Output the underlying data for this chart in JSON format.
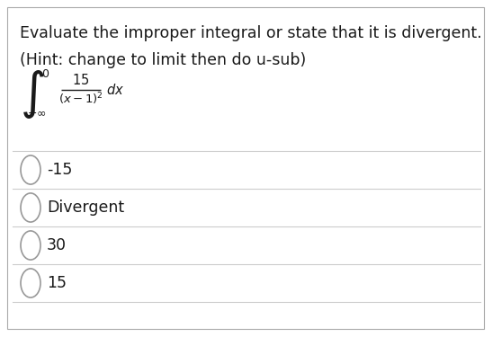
{
  "title": "Evaluate the improper integral or state that it is divergent.",
  "hint": "(Hint: change to limit then do u-sub)",
  "options": [
    "-15",
    "Divergent",
    "30",
    "15"
  ],
  "bg_color": "#ffffff",
  "text_color": "#1a1a1a",
  "option_text_color": "#1a1a1a",
  "line_color": "#cccccc",
  "border_color": "#aaaaaa",
  "font_size_title": 12.5,
  "font_size_hint": 12.5,
  "font_size_options": 12.5,
  "fig_width": 5.48,
  "fig_height": 3.75
}
